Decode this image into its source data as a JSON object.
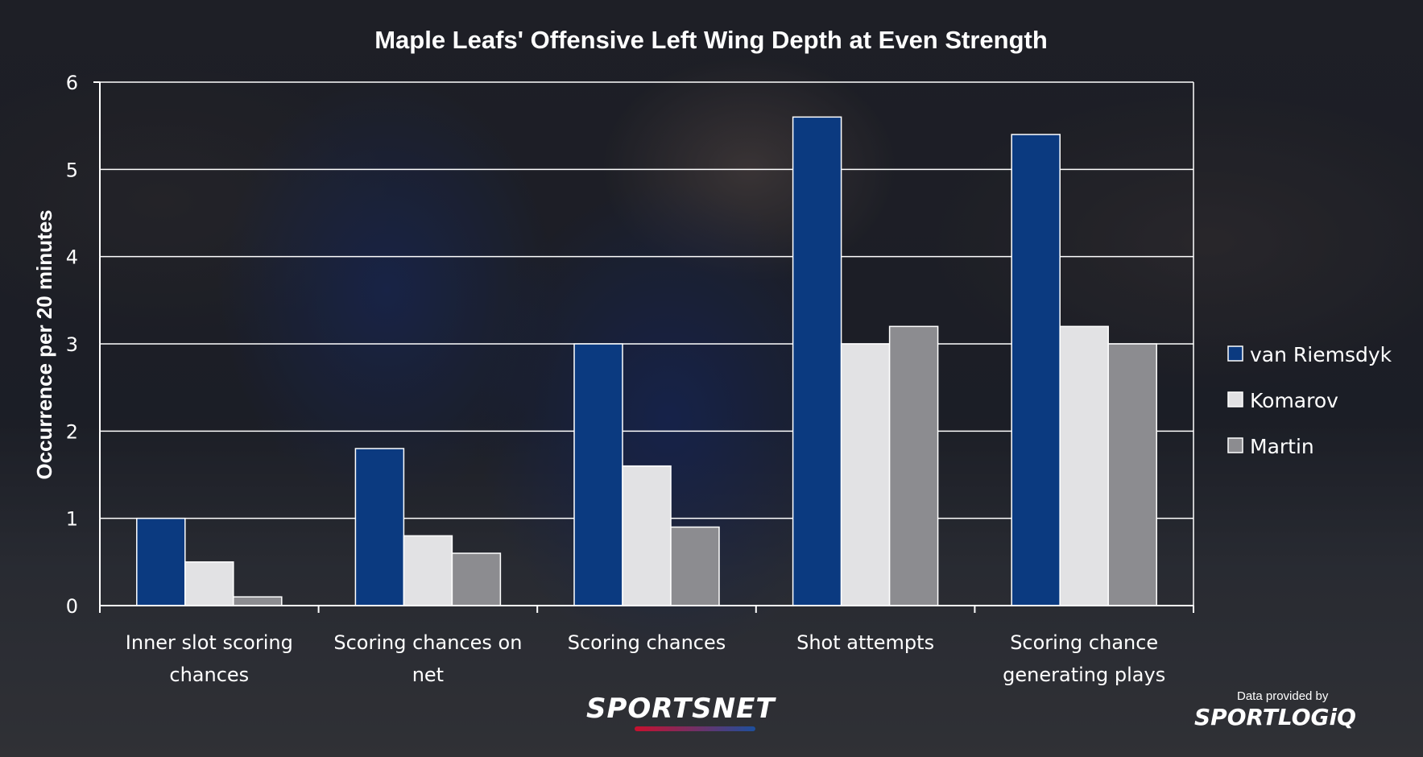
{
  "chart_data": {
    "type": "bar",
    "title": "Maple Leafs' Offensive Left Wing Depth at Even Strength",
    "ylabel": "Occurrence per 20 minutes",
    "xlabel": "",
    "ylim": [
      0,
      6
    ],
    "yticks": [
      0,
      1,
      2,
      3,
      4,
      5,
      6
    ],
    "grid": true,
    "legend_position": "right",
    "categories": [
      [
        "Inner slot scoring",
        "chances"
      ],
      [
        "Scoring chances on",
        "net"
      ],
      [
        "Scoring chances"
      ],
      [
        "Shot attempts"
      ],
      [
        "Scoring chance",
        "generating plays"
      ]
    ],
    "series": [
      {
        "name": "van Riemsdyk",
        "color": "#0b3a80",
        "values": [
          1.0,
          1.8,
          3.0,
          5.6,
          5.4
        ]
      },
      {
        "name": "Komarov",
        "color": "#e2e2e4",
        "values": [
          0.5,
          0.8,
          1.6,
          3.0,
          3.2
        ]
      },
      {
        "name": "Martin",
        "color": "#8c8c90",
        "values": [
          0.1,
          0.6,
          0.9,
          3.2,
          3.0
        ]
      }
    ]
  },
  "branding": {
    "sportsnet_logo": "SPORTSNET",
    "credit_caption": "Data provided by",
    "sportlogiq_logo": "SPORTLOGiQ"
  }
}
